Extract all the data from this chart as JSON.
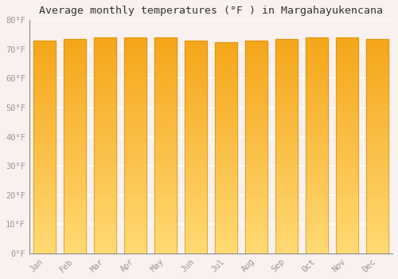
{
  "months": [
    "Jan",
    "Feb",
    "Mar",
    "Apr",
    "May",
    "Jun",
    "Jul",
    "Aug",
    "Sep",
    "Oct",
    "Nov",
    "Dec"
  ],
  "values": [
    73.0,
    73.5,
    74.0,
    74.1,
    74.0,
    73.0,
    72.5,
    73.0,
    73.5,
    74.0,
    74.1,
    73.5
  ],
  "bar_color_top": "#F5A623",
  "bar_color_bottom": "#FFD080",
  "bar_edge_color": "#CC8800",
  "background_color": "#f9f0f0",
  "grid_color": "#ffffff",
  "title": "Average monthly temperatures (°F ) in Margahayukencana",
  "title_fontsize": 9.5,
  "tick_label_color": "#999999",
  "ylim": [
    0,
    80
  ],
  "yticks": [
    0,
    10,
    20,
    30,
    40,
    50,
    60,
    70,
    80
  ],
  "ytick_labels": [
    "0°F",
    "10°F",
    "20°F",
    "30°F",
    "40°F",
    "50°F",
    "60°F",
    "70°F",
    "80°F"
  ]
}
